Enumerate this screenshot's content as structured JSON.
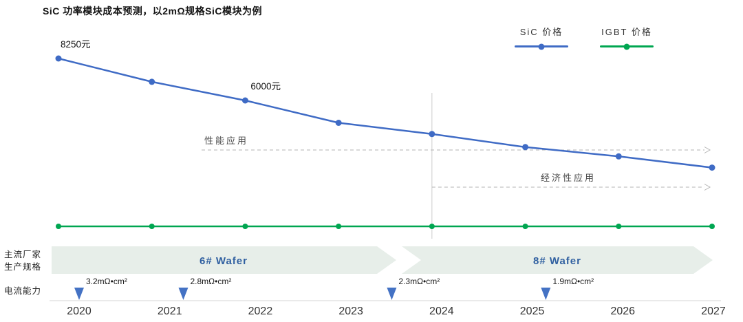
{
  "title": "SiC 功率模块成本预测，以2mΩ规格SiC模块为例",
  "legend": [
    {
      "label": "SiC 价格",
      "color": "#3f6bc5"
    },
    {
      "label": "IGBT 价格",
      "color": "#00a651"
    }
  ],
  "side_labels": {
    "producer_line1": "主流厂家",
    "producer_line2": "生产规格",
    "current_capability": "电流能力"
  },
  "chart_data": {
    "type": "line",
    "title": "SiC 功率模块成本预测，以2mΩ规格SiC模块为例",
    "x": [
      2020,
      2021,
      2022,
      2023,
      2024,
      2025,
      2026,
      2027
    ],
    "series": [
      {
        "name": "SiC 价格",
        "color": "#3f6bc5",
        "values": [
          8250,
          7000,
          6000,
          4800,
          4200,
          3500,
          3000,
          2400
        ],
        "value_labels": [
          {
            "index": 0,
            "text": "8250元"
          },
          {
            "index": 2,
            "text": "6000元"
          }
        ]
      },
      {
        "name": "IGBT 价格",
        "color": "#00a651",
        "constant": true,
        "values": []
      }
    ],
    "annotations": [
      {
        "text": "性能应用"
      },
      {
        "text": "经济性应用",
        "start_year": 2024
      }
    ],
    "divider_year": 2024,
    "wafer_band": [
      {
        "label": "6# Wafer"
      },
      {
        "label": "8# Wafer"
      }
    ],
    "resistance_markers": [
      {
        "text": "3.2mΩ•cm²",
        "year": 2020
      },
      {
        "text": "2.8mΩ•cm²",
        "year": 2021.15
      },
      {
        "text": "2.3mΩ•cm²",
        "year": 2023.45
      },
      {
        "text": "1.9mΩ•cm²",
        "year": 2025.15
      }
    ],
    "ylim": [
      0,
      9000
    ],
    "grid": false,
    "legend_position": "top-right"
  }
}
